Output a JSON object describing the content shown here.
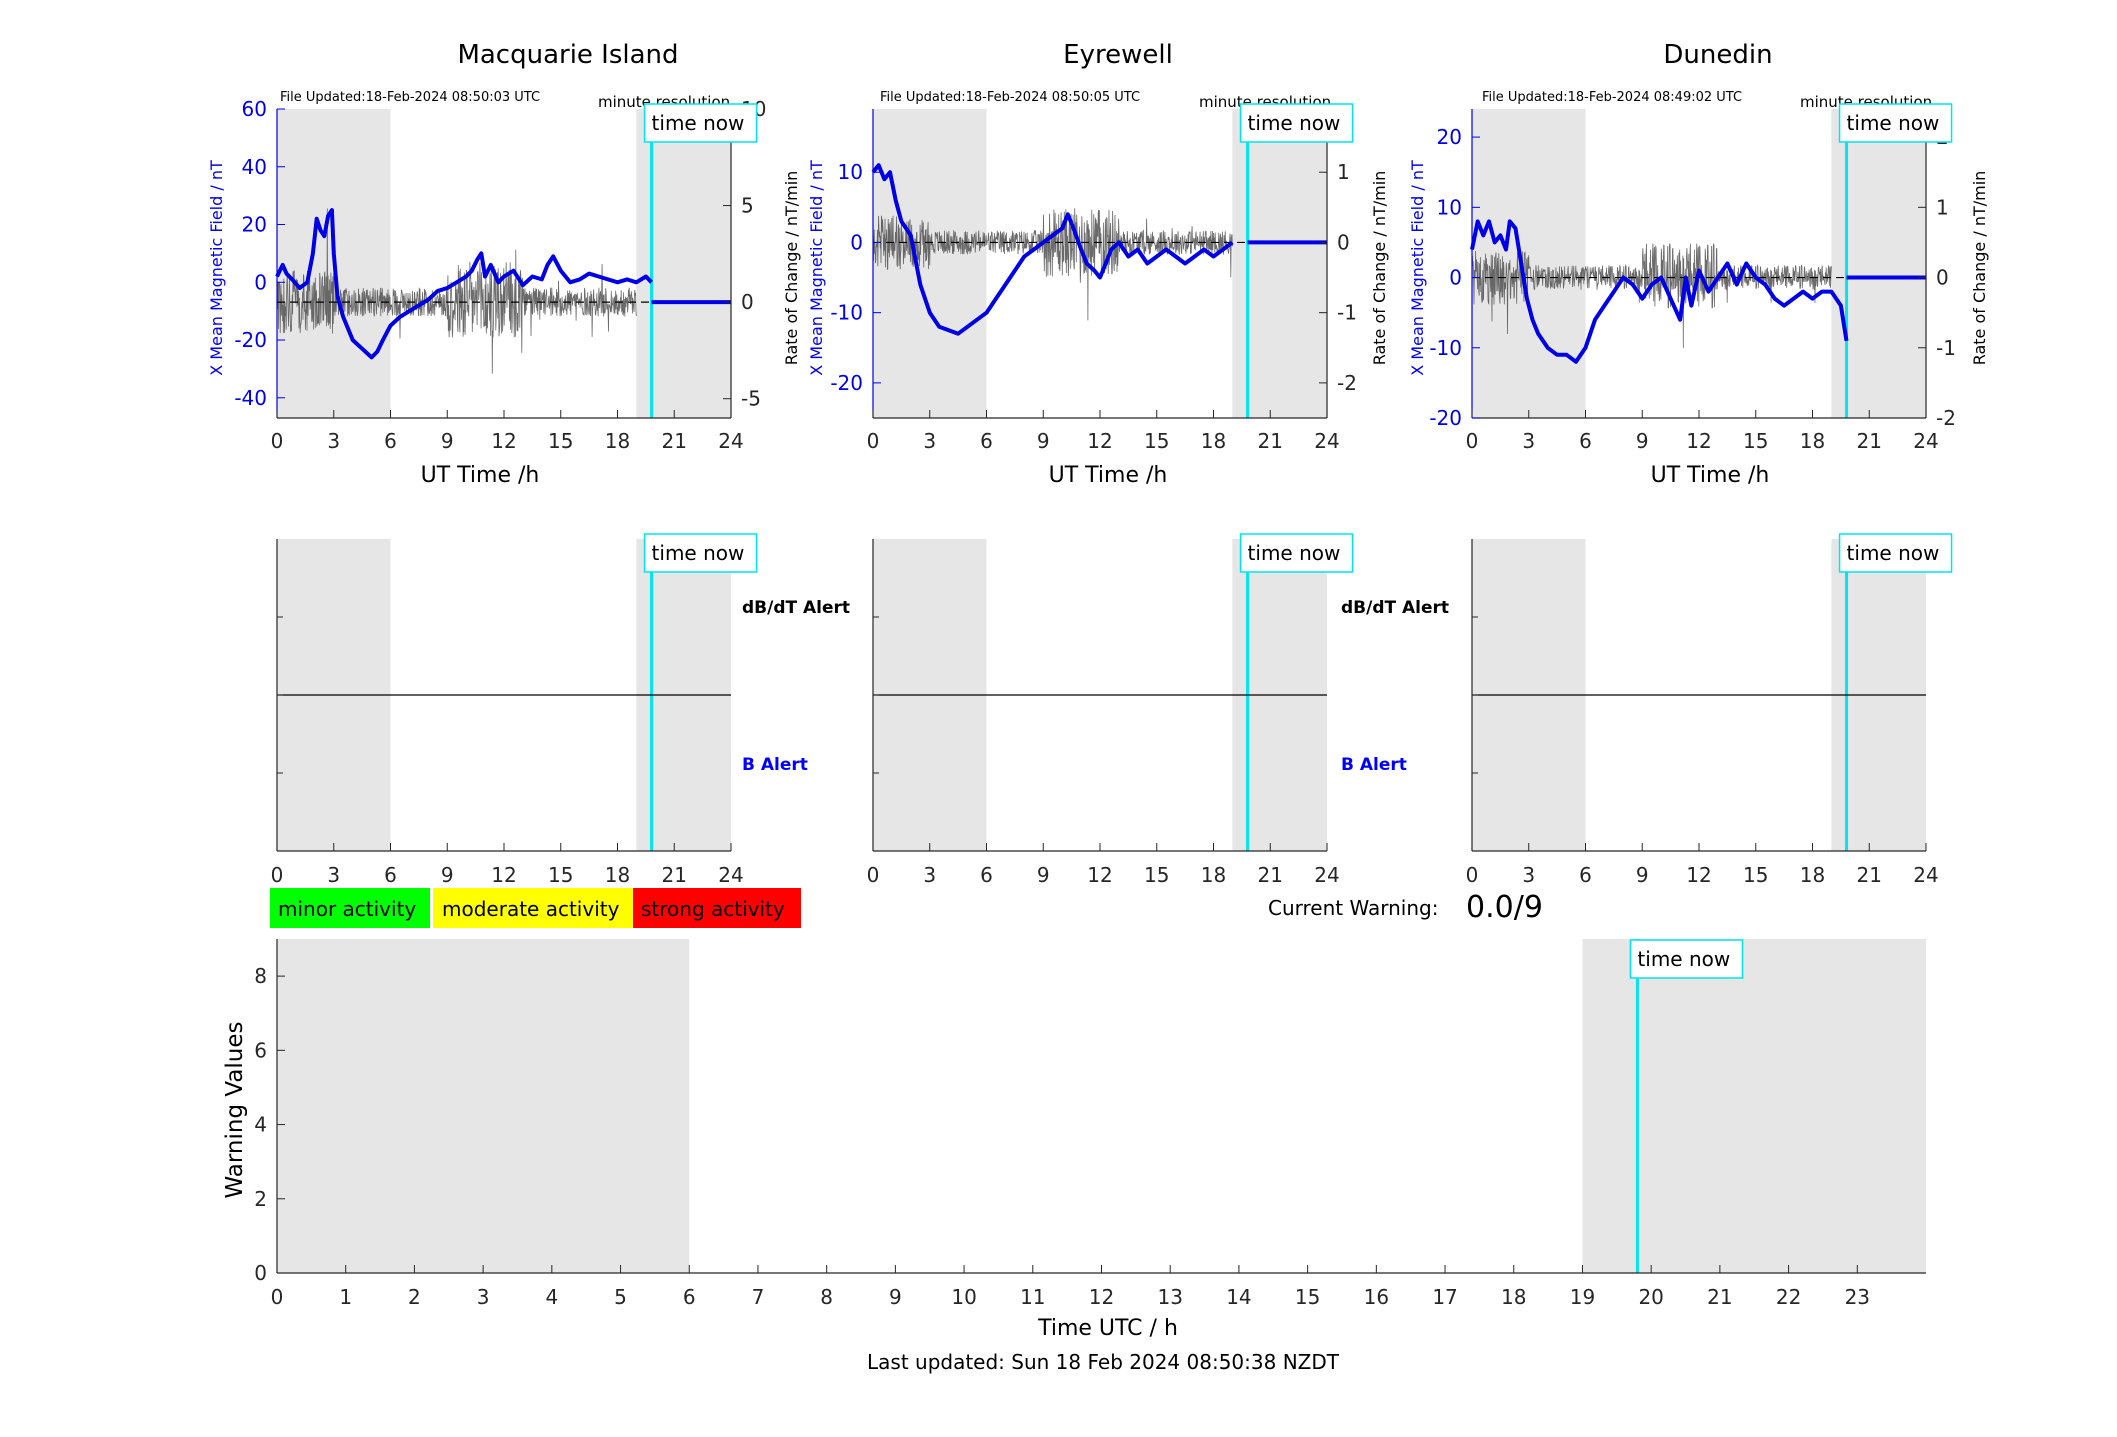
{
  "footer": {
    "last_updated": "Last updated: Sun 18 Feb 2024 08:50:38 NZDT"
  },
  "legend": {
    "minor": {
      "label": "minor activity",
      "color": "#00ff00"
    },
    "moderate": {
      "label": "moderate activity",
      "color": "#ffff00"
    },
    "strong": {
      "label": "strong activity",
      "color": "#ff0000"
    }
  },
  "current_warning": {
    "label": "Current Warning:",
    "value": "0.0/9"
  },
  "colors": {
    "field": "#0000e6",
    "rate": "#505050",
    "time_now": "#00e5ee",
    "shade": "#e6e6e6",
    "b_alert": "#0000ff"
  },
  "time_now_label": "time now",
  "chart_data": [
    {
      "id": "macquarie",
      "type": "line",
      "title": "Macquarie Island",
      "file_updated": "File Updated:18-Feb-2024 08:50:03 UTC",
      "resolution": "minute resolution",
      "xlabel": "UT Time /h",
      "ylabel_left": "X Mean Magnetic Field / nT",
      "ylabel_right": "Rate of Change / nT/min",
      "xlim": [
        0,
        24
      ],
      "xticks": [
        "0",
        "3",
        "6",
        "9",
        "12",
        "15",
        "18",
        "21",
        "24"
      ],
      "ylim_left": [
        -47,
        60
      ],
      "yticks_left": [
        "60",
        "40",
        "20",
        "0",
        "-20",
        "-40"
      ],
      "ylim_right": [
        -6,
        10
      ],
      "yticks_right": [
        "10",
        "5",
        "0",
        "-5"
      ],
      "night_shading": [
        [
          0,
          6
        ],
        [
          19,
          24
        ]
      ],
      "time_now": 19.8,
      "field_series": {
        "name": "X Mean Magnetic Field",
        "x": [
          0,
          0.3,
          0.5,
          0.8,
          1.2,
          1.6,
          1.9,
          2.1,
          2.3,
          2.5,
          2.7,
          2.9,
          3.0,
          3.2,
          3.5,
          4.0,
          4.5,
          5.0,
          5.3,
          5.6,
          6.0,
          6.5,
          7.0,
          7.5,
          8.0,
          8.5,
          9.0,
          9.5,
          10.0,
          10.3,
          10.6,
          10.8,
          11.0,
          11.3,
          11.7,
          12.0,
          12.5,
          13.0,
          13.5,
          14.0,
          14.3,
          14.6,
          15.0,
          15.5,
          16.0,
          16.5,
          17.0,
          17.5,
          18.0,
          18.5,
          19.0,
          19.5,
          19.8
        ],
        "y": [
          2,
          6,
          3,
          1,
          -2,
          0,
          10,
          22,
          18,
          16,
          23,
          25,
          10,
          -5,
          -12,
          -20,
          -23,
          -26,
          -24,
          -20,
          -15,
          -12,
          -10,
          -8,
          -6,
          -3,
          -2,
          0,
          2,
          4,
          8,
          10,
          2,
          6,
          0,
          2,
          4,
          -1,
          2,
          1,
          6,
          9,
          4,
          0,
          1,
          3,
          2,
          1,
          0,
          1,
          0,
          2,
          0
        ]
      },
      "rate_series": {
        "name": "Rate of Change",
        "amplitude": 1.5
      }
    },
    {
      "id": "eyrewell",
      "type": "line",
      "title": "Eyrewell",
      "file_updated": "File Updated:18-Feb-2024 08:50:05 UTC",
      "resolution": "minute resolution",
      "xlabel": "UT Time /h",
      "ylabel_left": "X Mean Magnetic Field / nT",
      "ylabel_right": "Rate of Change / nT/min",
      "xlim": [
        0,
        24
      ],
      "xticks": [
        "0",
        "3",
        "6",
        "9",
        "12",
        "15",
        "18",
        "21",
        "24"
      ],
      "ylim_left": [
        -25,
        19
      ],
      "yticks_left": [
        "10",
        "0",
        "-10",
        "-20"
      ],
      "ylim_right": [
        -2.5,
        1.9
      ],
      "yticks_right": [
        "1",
        "0",
        "-1",
        "-2"
      ],
      "night_shading": [
        [
          0,
          6
        ],
        [
          19,
          24
        ]
      ],
      "time_now": 19.8,
      "field_series": {
        "name": "X Mean Magnetic Field",
        "x": [
          0,
          0.3,
          0.6,
          0.9,
          1.2,
          1.5,
          2.0,
          2.5,
          3.0,
          3.5,
          4.0,
          4.5,
          5.0,
          5.5,
          6.0,
          6.5,
          7.0,
          7.5,
          8.0,
          8.5,
          9.0,
          9.5,
          10.0,
          10.3,
          10.6,
          11.0,
          11.3,
          11.7,
          12.0,
          12.3,
          12.6,
          13.0,
          13.5,
          14.0,
          14.5,
          15.0,
          15.5,
          16.0,
          16.5,
          17.0,
          17.5,
          18.0,
          18.5,
          19.0
        ],
        "y": [
          10,
          11,
          9,
          10,
          6,
          3,
          1,
          -6,
          -10,
          -12,
          -12.5,
          -13,
          -12,
          -11,
          -10,
          -8,
          -6,
          -4,
          -2,
          -1,
          0,
          1,
          2,
          4,
          2,
          -1,
          -3,
          -4,
          -5,
          -3,
          -1,
          0,
          -2,
          -1,
          -3,
          -2,
          -1,
          -2,
          -3,
          -2,
          -1,
          -2,
          -1,
          0
        ]
      },
      "rate_series": {
        "name": "Rate of Change",
        "amplitude": 0.35
      }
    },
    {
      "id": "dunedin",
      "type": "line",
      "title": "Dunedin",
      "file_updated": "File Updated:18-Feb-2024 08:49:02 UTC",
      "resolution": "minute resolution",
      "xlabel": "UT Time /h",
      "ylabel_left": "X Mean Magnetic Field / nT",
      "ylabel_right": "Rate of Change / nT/min",
      "xlim": [
        0,
        24
      ],
      "xticks": [
        "0",
        "3",
        "6",
        "9",
        "12",
        "15",
        "18",
        "21",
        "24"
      ],
      "ylim_left": [
        -20,
        24
      ],
      "yticks_left": [
        "20",
        "10",
        "0",
        "-10",
        "-20"
      ],
      "ylim_right": [
        -2,
        2.4
      ],
      "yticks_right": [
        "2",
        "1",
        "0",
        "-1",
        "-2"
      ],
      "night_shading": [
        [
          0,
          6
        ],
        [
          19,
          24
        ]
      ],
      "time_now": 19.8,
      "field_series": {
        "name": "X Mean Magnetic Field",
        "x": [
          0,
          0.3,
          0.6,
          0.9,
          1.2,
          1.5,
          1.8,
          2.0,
          2.3,
          2.6,
          2.9,
          3.2,
          3.5,
          4.0,
          4.5,
          5.0,
          5.5,
          6.0,
          6.5,
          7.0,
          7.5,
          8.0,
          8.5,
          9.0,
          9.5,
          10.0,
          10.5,
          11.0,
          11.3,
          11.6,
          12.0,
          12.5,
          13.0,
          13.5,
          14.0,
          14.5,
          15.0,
          15.5,
          16.0,
          16.5,
          17.0,
          17.5,
          18.0,
          18.5,
          19.0,
          19.5,
          19.8
        ],
        "y": [
          4,
          8,
          6,
          8,
          5,
          6,
          4,
          8,
          7,
          2,
          -3,
          -6,
          -8,
          -10,
          -11,
          -11,
          -12,
          -10,
          -6,
          -4,
          -2,
          0,
          -1,
          -3,
          -1,
          0,
          -3,
          -6,
          0,
          -4,
          1,
          -2,
          0,
          2,
          -1,
          2,
          0,
          -1,
          -3,
          -4,
          -3,
          -2,
          -3,
          -2,
          -2,
          -4,
          -9
        ]
      },
      "rate_series": {
        "name": "Rate of Change",
        "amplitude": 0.35
      }
    },
    {
      "id": "alerts-macquarie",
      "type": "line",
      "title": "",
      "xlim": [
        0,
        24
      ],
      "xticks": [
        "0",
        "3",
        "6",
        "9",
        "12",
        "15",
        "18",
        "21",
        "24"
      ],
      "night_shading": [
        [
          0,
          6
        ],
        [
          19,
          24
        ]
      ],
      "time_now": 19.8,
      "alert_labels": {
        "upper": "dB/dT Alert",
        "lower": "B Alert"
      }
    },
    {
      "id": "alerts-eyrewell",
      "type": "line",
      "title": "",
      "xlim": [
        0,
        24
      ],
      "xticks": [
        "0",
        "3",
        "6",
        "9",
        "12",
        "15",
        "18",
        "21",
        "24"
      ],
      "night_shading": [
        [
          0,
          6
        ],
        [
          19,
          24
        ]
      ],
      "time_now": 19.8,
      "alert_labels": {
        "upper": "dB/dT Alert",
        "lower": "B Alert"
      }
    },
    {
      "id": "alerts-dunedin",
      "type": "line",
      "title": "",
      "xlim": [
        0,
        24
      ],
      "xticks": [
        "0",
        "3",
        "6",
        "9",
        "12",
        "15",
        "18",
        "21",
        "24"
      ],
      "night_shading": [
        [
          0,
          6
        ],
        [
          19,
          24
        ]
      ],
      "time_now": 19.8,
      "alert_labels": {
        "upper": "",
        "lower": ""
      }
    },
    {
      "id": "warning",
      "type": "line",
      "title": "",
      "xlabel": "Time UTC / h",
      "ylabel": "Warning Values",
      "xlim": [
        0,
        24
      ],
      "xticks": [
        "0",
        "1",
        "2",
        "3",
        "4",
        "5",
        "6",
        "7",
        "8",
        "9",
        "10",
        "11",
        "12",
        "13",
        "14",
        "15",
        "16",
        "17",
        "18",
        "19",
        "20",
        "21",
        "22",
        "23"
      ],
      "ylim": [
        0,
        9
      ],
      "yticks": [
        "0",
        "2",
        "4",
        "6",
        "8"
      ],
      "night_shading": [
        [
          0,
          6
        ],
        [
          19,
          24
        ]
      ],
      "time_now": 19.8,
      "series": []
    }
  ]
}
